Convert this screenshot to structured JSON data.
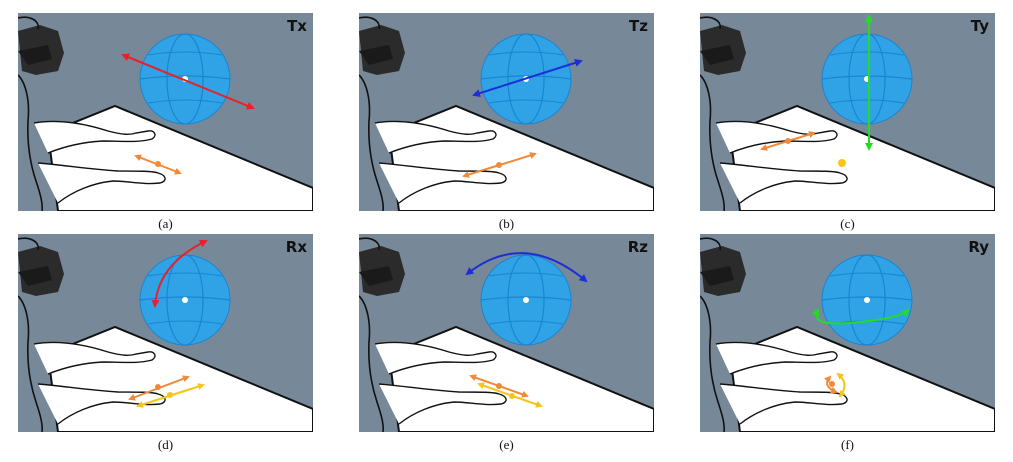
{
  "colors": {
    "background": "#778899",
    "sphere_fill": "#2fa3e6",
    "sphere_line": "#1b84d0",
    "table": "#ffffff",
    "translate_x": "#e8202a",
    "translate_z": "#1c2fd6",
    "translate_y": "#22dd22",
    "hand_primary": "#f08a3a",
    "hand_secondary": "#f5c518"
  },
  "panels": [
    {
      "id": "a",
      "label": "Tx",
      "caption": "(a)",
      "motion": "translation-x"
    },
    {
      "id": "b",
      "label": "Tz",
      "caption": "(b)",
      "motion": "translation-z"
    },
    {
      "id": "c",
      "label": "Ty",
      "caption": "(c)",
      "motion": "translation-y"
    },
    {
      "id": "d",
      "label": "Rx",
      "caption": "(d)",
      "motion": "rotation-x"
    },
    {
      "id": "e",
      "label": "Rz",
      "caption": "(e)",
      "motion": "rotation-z"
    },
    {
      "id": "f",
      "label": "Ry",
      "caption": "(f)",
      "motion": "rotation-y"
    }
  ]
}
